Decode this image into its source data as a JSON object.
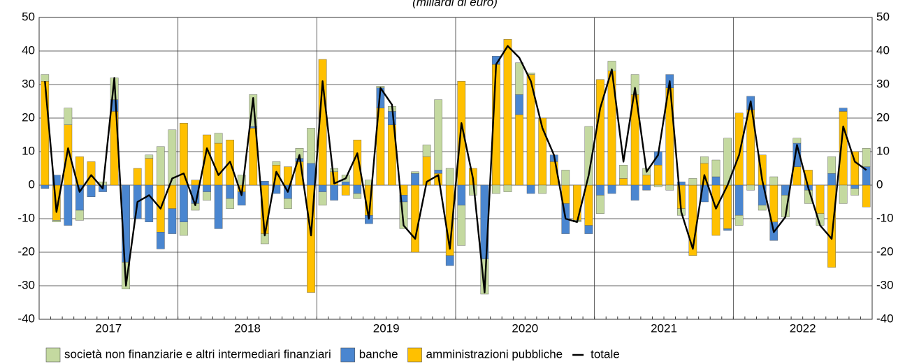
{
  "chart_data": {
    "type": "stacked-bar-line",
    "subtitle": "(miliardi di euro)",
    "years": [
      "2017",
      "2018",
      "2019",
      "2020",
      "2021",
      "2022"
    ],
    "months_per_year": 12,
    "ylim": [
      -40,
      50
    ],
    "yticks": [
      -40,
      -30,
      -20,
      -10,
      0,
      10,
      20,
      30,
      40,
      50
    ],
    "grid": true,
    "series": [
      {
        "name": "società non finanziarie e altri intermediari finanziari",
        "color": "#c4d9a0",
        "kind": "bar",
        "values": [
          2,
          -0.5,
          5,
          -3,
          0,
          1,
          6.5,
          -8,
          0,
          1,
          11.5,
          16.5,
          -4,
          -2,
          -2.5,
          3,
          -3,
          3,
          9.5,
          -3,
          1,
          -3,
          3,
          10.5,
          -4,
          1,
          2,
          -1.5,
          1.5,
          0.5,
          1.5,
          -8,
          0.5,
          3.5,
          21,
          5,
          -12,
          -3,
          -10.5,
          -2.5,
          -2,
          9.5,
          0.5,
          -2.5,
          0,
          4.5,
          -0.5,
          17.5,
          -5.5,
          3,
          4,
          6,
          2,
          -0.5,
          -1.5,
          -2,
          2,
          2,
          5,
          14,
          -3,
          -1.5,
          -1.5,
          2.5,
          -6.5,
          1.5,
          -4,
          -3.5,
          5,
          -5.5,
          -2,
          5.5
        ]
      },
      {
        "name": "banche",
        "color": "#4a86d0",
        "kind": "bar",
        "values": [
          -1,
          3,
          -12,
          -7.5,
          -3.5,
          -2,
          3.5,
          -23,
          -10,
          -11,
          -5,
          -7.5,
          -11,
          -5.5,
          -2,
          -13,
          -4,
          -4,
          0.5,
          1.2,
          -2.5,
          -4,
          1,
          6.5,
          -2,
          -4.5,
          1,
          -2.5,
          -2.5,
          6,
          4,
          -2,
          3.5,
          0,
          1,
          -3,
          -6,
          0,
          -22,
          2.5,
          0,
          6,
          -2.5,
          0,
          2,
          -9,
          0,
          -2.5,
          -3,
          -2.5,
          0,
          -4.5,
          -1.5,
          4,
          4,
          1,
          0,
          -5,
          2.5,
          -0.5,
          -9,
          4,
          -6,
          -5.5,
          -3,
          7,
          -1.5,
          0,
          3.5,
          1,
          -1,
          5.5
        ]
      },
      {
        "name": "amministrazioni pubbliche",
        "color": "#ffc000",
        "kind": "bar",
        "values": [
          31,
          -10.5,
          18,
          8.5,
          7,
          0,
          22,
          0,
          5,
          8,
          -14,
          -7,
          18.5,
          1.5,
          15,
          12.5,
          13.5,
          -2,
          17,
          -14.5,
          6,
          5.5,
          7,
          -32,
          37.5,
          4,
          -3,
          13.5,
          -9,
          23,
          18,
          -3,
          -20,
          8.5,
          3.5,
          -21,
          31,
          5,
          0,
          36,
          43.5,
          21,
          33,
          20,
          7,
          -5.5,
          -10.5,
          -12,
          31.5,
          34,
          2,
          27,
          3,
          6,
          29,
          -7,
          -21,
          6.5,
          -15,
          -13,
          21.5,
          22.5,
          9,
          -11,
          0,
          5.5,
          4.5,
          -8.5,
          -24.5,
          22,
          10,
          -6.5
        ]
      },
      {
        "name": "totale",
        "color": "#000000",
        "kind": "line",
        "values": [
          31,
          -8,
          11,
          -2,
          3,
          -1,
          32,
          -30,
          -5,
          -3,
          -7,
          2,
          3.5,
          -6,
          11,
          3,
          7,
          -3,
          26,
          -15,
          4,
          -2,
          9,
          -15,
          31,
          0.5,
          2,
          9.5,
          -10,
          29,
          24,
          -12,
          -16,
          1,
          3,
          -19,
          18.5,
          2,
          -32,
          36,
          41.5,
          38,
          31,
          17,
          9,
          -10,
          -11,
          3,
          23,
          34.5,
          7,
          29,
          4,
          9,
          31,
          -8,
          -19,
          3,
          -7,
          0,
          9,
          25,
          1.5,
          -14,
          -9.5,
          12,
          -1,
          -12,
          -16,
          17.5,
          7,
          4.5
        ]
      }
    ]
  }
}
